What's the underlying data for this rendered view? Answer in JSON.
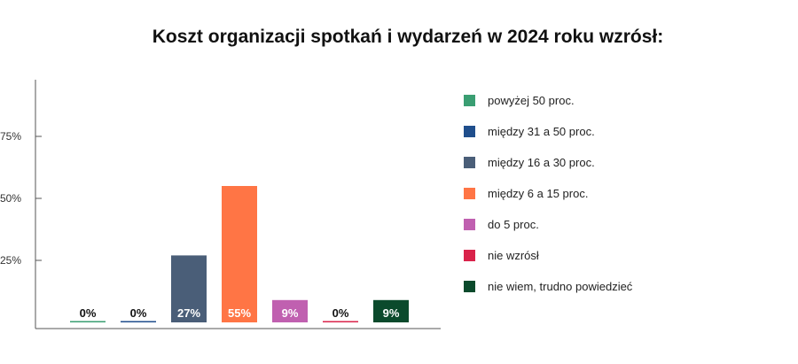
{
  "chart_data": {
    "type": "bar",
    "title": "Koszt organizacji spotkań i wydarzeń w 2024 roku wzrósł:",
    "xlabel": "",
    "ylabel": "",
    "ylim": [
      0,
      100
    ],
    "yticks": [
      {
        "value": 25,
        "label": "25%"
      },
      {
        "value": 50,
        "label": "50%"
      },
      {
        "value": 75,
        "label": "75%"
      }
    ],
    "grid": false,
    "legend_position": "right",
    "categories": [
      "powyżej 50 proc.",
      "między 31 a 50 proc.",
      "między 16 a 30 proc.",
      "między 6 a 15 proc.",
      "do 5 proc.",
      "nie wzrósł",
      "nie wiem, trudno powiedzieć"
    ],
    "values": [
      0,
      0,
      27,
      55,
      9,
      0,
      9
    ],
    "data_labels": [
      "0%",
      "0%",
      "27%",
      "55%",
      "9%",
      "0%",
      "9%"
    ],
    "colors": [
      "#3a9e72",
      "#1f4e8c",
      "#4a5e78",
      "#ff7545",
      "#c060b0",
      "#d9234a",
      "#0b4a2c"
    ]
  }
}
